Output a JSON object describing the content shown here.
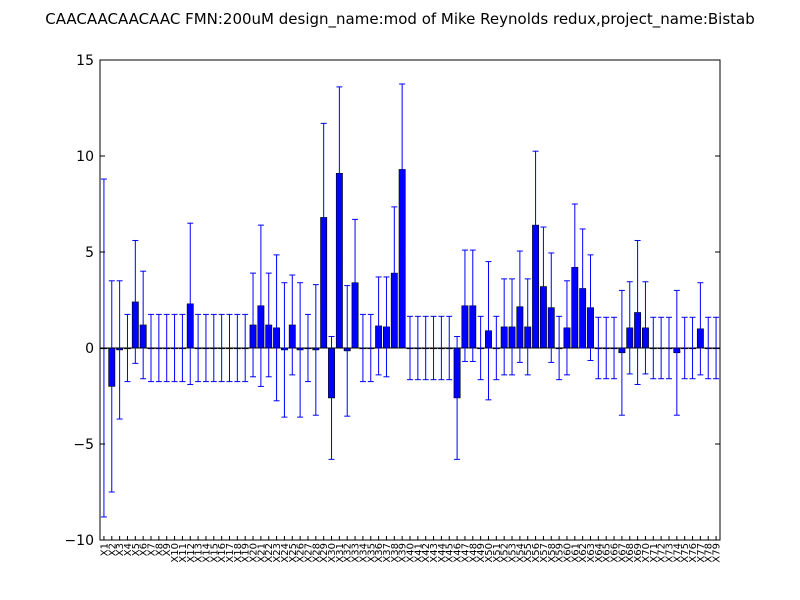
{
  "chart_data": {
    "type": "bar",
    "title": "CAACAACAACAAC  FMN:200uM  design_name:mod of Mike Reynolds redux,project_name:Bistab",
    "xlabel": "",
    "ylabel": "",
    "ylim": [
      -10,
      15
    ],
    "yticks": [
      -10,
      -5,
      0,
      5,
      10,
      15
    ],
    "grid": false,
    "bar_color": "#0000ff",
    "error_color": "#0000ff",
    "categories": [
      "X1",
      "X2",
      "X3",
      "X4",
      "X5",
      "X6",
      "X7",
      "X8",
      "X9",
      "X10",
      "X11",
      "X12",
      "X13",
      "X14",
      "X15",
      "X16",
      "X17",
      "X18",
      "X19",
      "X20",
      "X21",
      "X22",
      "X23",
      "X24",
      "X25",
      "X26",
      "X27",
      "X28",
      "X29",
      "X30",
      "X31",
      "X32",
      "X33",
      "X34",
      "X35",
      "X36",
      "X37",
      "X38",
      "X39",
      "X40",
      "X41",
      "X42",
      "X43",
      "X44",
      "X45",
      "X46",
      "X47",
      "X48",
      "X49",
      "X50",
      "X51",
      "X52",
      "X53",
      "X54",
      "X55",
      "X56",
      "X57",
      "X58",
      "X59",
      "X60",
      "X61",
      "X62",
      "X63",
      "X64",
      "X65",
      "X66",
      "X67",
      "X68",
      "X69",
      "X70",
      "X71",
      "X72",
      "X73",
      "X74",
      "X75",
      "X76",
      "X77",
      "X78",
      "X79"
    ],
    "values": [
      0,
      -2,
      -0.1,
      0,
      2.4,
      1.2,
      0,
      0,
      0,
      0,
      0,
      2.3,
      0,
      0,
      0,
      0,
      0,
      0,
      0,
      1.2,
      2.2,
      1.2,
      1.05,
      -0.1,
      1.2,
      -0.1,
      0,
      -0.1,
      6.8,
      -2.6,
      9.1,
      -0.15,
      3.4,
      0,
      0,
      1.15,
      1.1,
      3.9,
      9.3,
      0,
      0,
      0,
      0,
      0,
      0,
      -2.6,
      2.2,
      2.2,
      0,
      0.9,
      0,
      1.1,
      1.1,
      2.15,
      1.1,
      6.4,
      3.2,
      2.1,
      0,
      1.05,
      4.2,
      3.1,
      2.1,
      0,
      0,
      0,
      -0.25,
      1.05,
      1.85,
      1.05,
      0,
      0,
      0,
      -0.25,
      0,
      0,
      1.0,
      0,
      0
    ],
    "errors": [
      8.8,
      5.5,
      3.6,
      1.75,
      3.2,
      2.8,
      1.75,
      1.75,
      1.75,
      1.75,
      1.75,
      4.2,
      1.75,
      1.75,
      1.75,
      1.75,
      1.75,
      1.75,
      1.75,
      2.7,
      4.2,
      2.7,
      3.8,
      3.5,
      2.6,
      3.5,
      1.75,
      3.4,
      4.9,
      3.2,
      4.5,
      3.4,
      3.3,
      1.75,
      1.75,
      2.55,
      2.6,
      3.45,
      4.45,
      1.65,
      1.65,
      1.65,
      1.65,
      1.65,
      1.65,
      3.2,
      2.9,
      2.9,
      1.65,
      3.6,
      1.65,
      2.5,
      2.5,
      2.9,
      2.5,
      3.85,
      3.1,
      2.85,
      1.65,
      2.45,
      3.3,
      3.1,
      2.75,
      1.6,
      1.6,
      1.6,
      3.25,
      2.4,
      3.75,
      2.4,
      1.6,
      1.6,
      1.6,
      3.25,
      1.6,
      1.6,
      2.4,
      1.6,
      1.6
    ]
  }
}
